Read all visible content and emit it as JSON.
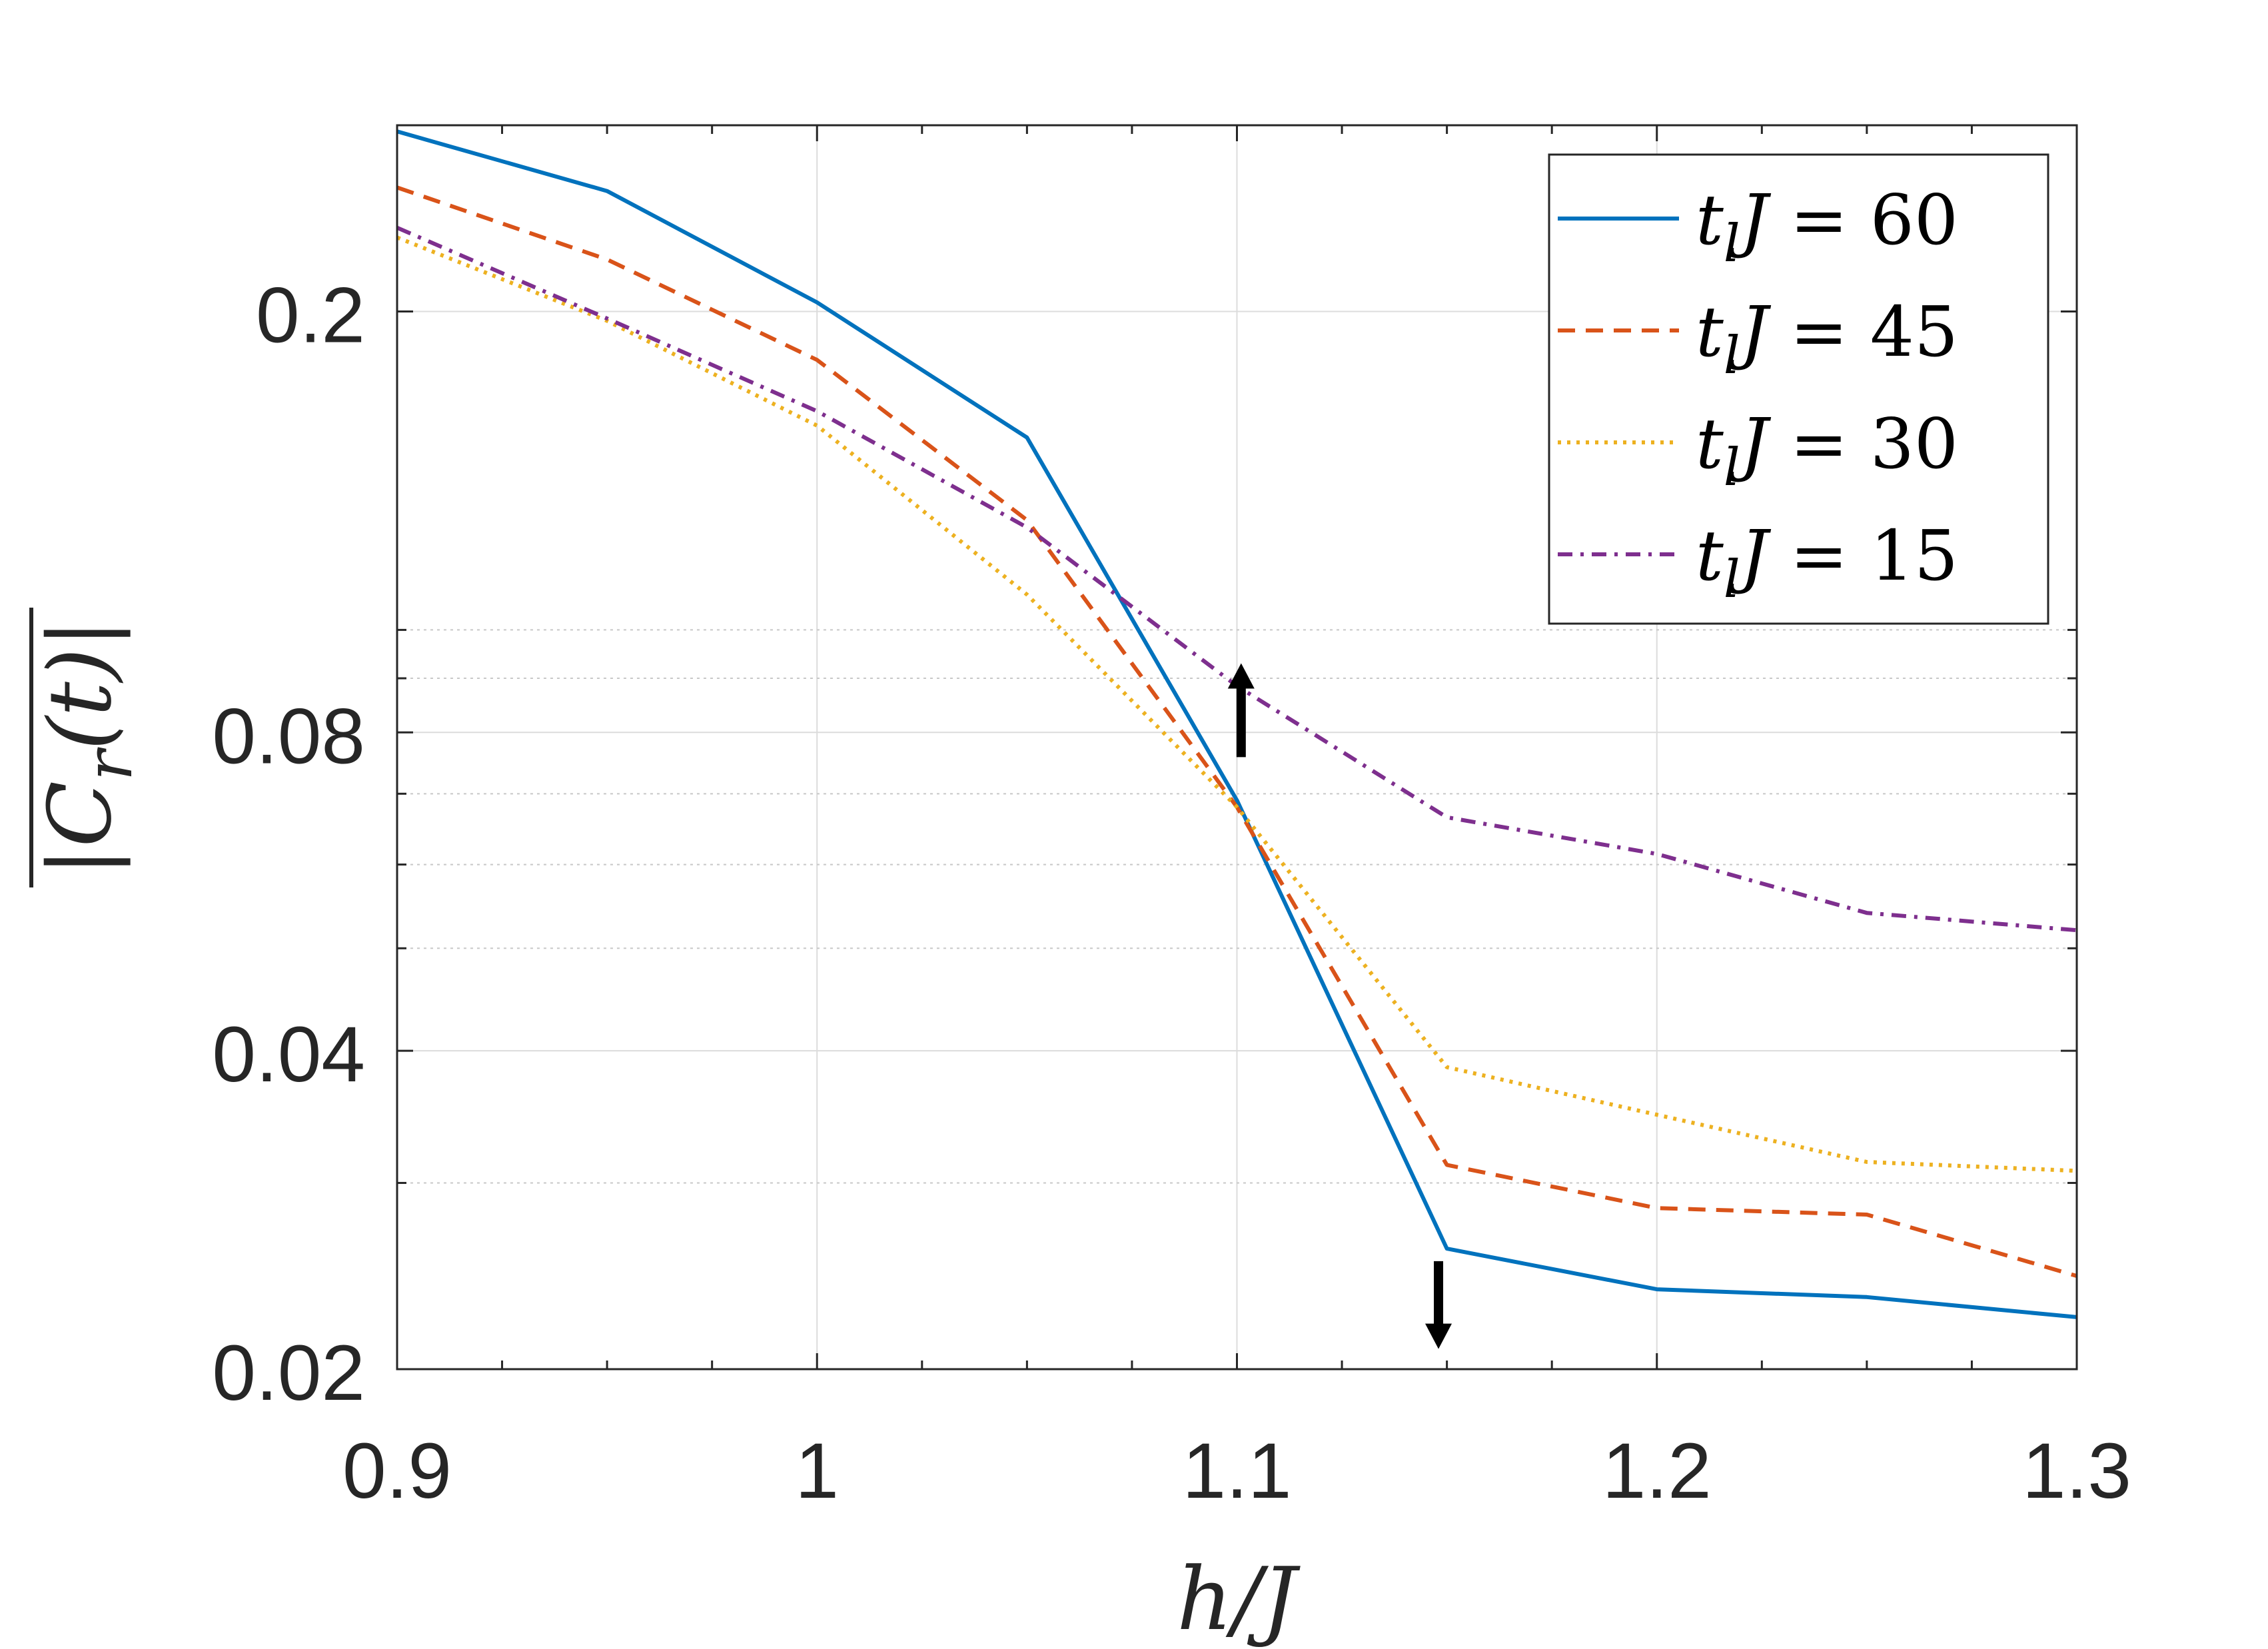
{
  "chart_data": {
    "type": "line",
    "xlabel": "h/J",
    "ylabel": "|C_r(t)| (time-averaged)",
    "xlim": [
      0.9,
      1.3
    ],
    "ylim": [
      0.02,
      0.3
    ],
    "yscale": "log",
    "grid": true,
    "legend_position": "top-right",
    "x_ticks": [
      "0.9",
      "1",
      "1.1",
      "1.2",
      "1.3"
    ],
    "y_ticks": [
      "0.02",
      "0.04",
      "0.08",
      "0.2"
    ],
    "x": [
      0.9,
      0.95,
      1.0,
      1.05,
      1.1,
      1.15,
      1.2,
      1.25,
      1.3
    ],
    "series": [
      {
        "name": "t_l J = 60",
        "legend_lhs": "t",
        "legend_sub": "l",
        "legend_var": "J",
        "legend_rhs": "= 60",
        "color": "#0072BD",
        "dash": "solid",
        "values": [
          0.296,
          0.26,
          0.204,
          0.152,
          0.069,
          0.026,
          0.0238,
          0.0234,
          0.0224
        ]
      },
      {
        "name": "t_l J = 45",
        "legend_lhs": "t",
        "legend_sub": "l",
        "legend_var": "J",
        "legend_rhs": "= 45",
        "color": "#D95319",
        "dash": "dashed",
        "values": [
          0.262,
          0.224,
          0.18,
          0.127,
          0.068,
          0.0312,
          0.0284,
          0.028,
          0.0245
        ]
      },
      {
        "name": "t_l J = 30",
        "legend_lhs": "t",
        "legend_sub": "l",
        "legend_var": "J",
        "legend_rhs": "= 30",
        "color": "#EDB120",
        "dash": "dotted",
        "values": [
          0.235,
          0.196,
          0.156,
          0.108,
          0.068,
          0.0386,
          0.0348,
          0.0314,
          0.0308
        ]
      },
      {
        "name": "t_l J = 15",
        "legend_lhs": "t",
        "legend_sub": "l",
        "legend_var": "J",
        "legend_rhs": "= 15",
        "color": "#7E2F8E",
        "dash": "dashdot",
        "values": [
          0.24,
          0.197,
          0.161,
          0.125,
          0.0885,
          0.0665,
          0.0614,
          0.054,
          0.052
        ]
      }
    ],
    "annotations": [
      {
        "type": "arrow",
        "direction": "up",
        "x": 1.101,
        "y_from": 0.0758,
        "y_to": 0.093
      },
      {
        "type": "arrow",
        "direction": "down",
        "x": 1.148,
        "y_from": 0.0253,
        "y_to": 0.0209
      }
    ]
  }
}
